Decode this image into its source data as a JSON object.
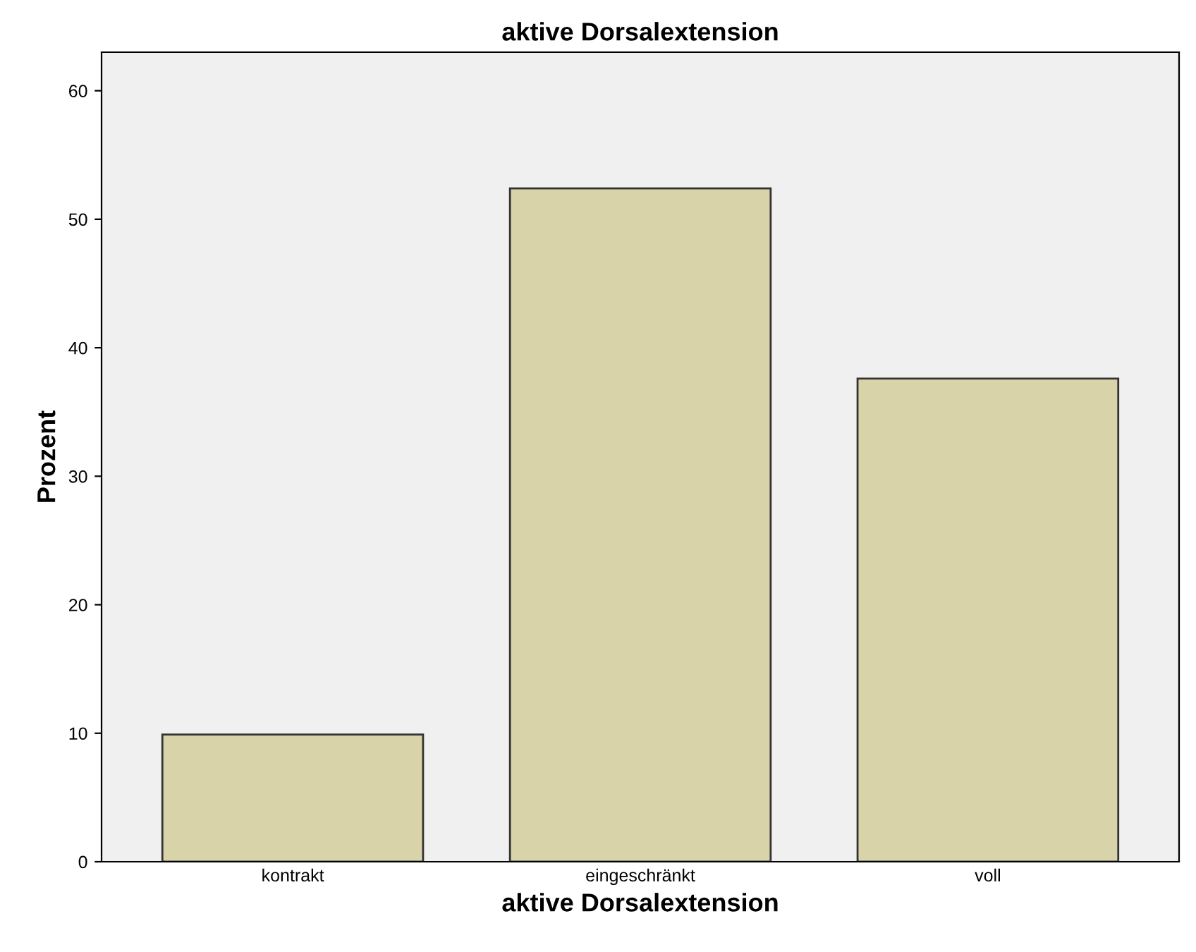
{
  "chart_data": {
    "type": "bar",
    "title": "aktive Dorsalextension",
    "xlabel": "aktive Dorsalextension",
    "ylabel": "Prozent",
    "categories": [
      "kontrakt",
      "eingeschränkt",
      "voll"
    ],
    "values": [
      9.9,
      52.4,
      37.6
    ],
    "color": "#d9d3aa",
    "ylim": [
      0,
      63
    ],
    "yticks": [
      0,
      10,
      20,
      30,
      40,
      50,
      60
    ],
    "grid": false
  }
}
